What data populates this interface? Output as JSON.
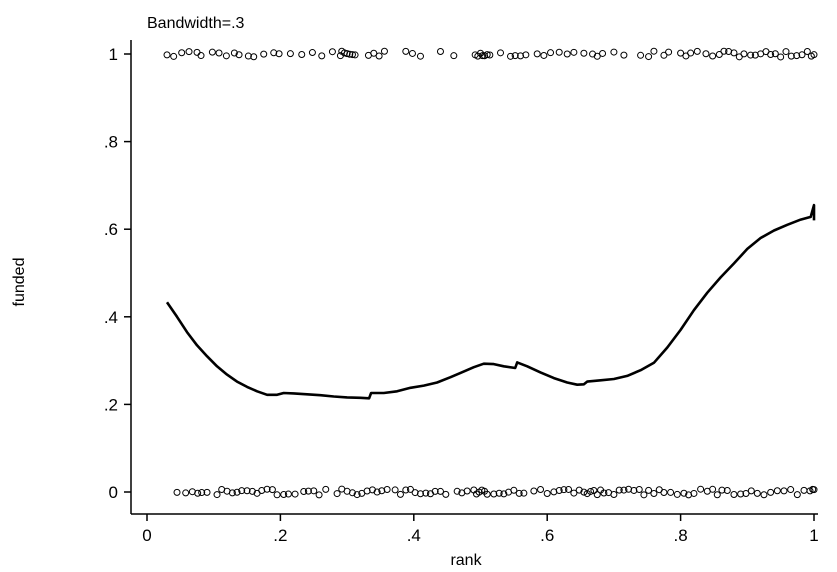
{
  "chart_data": {
    "type": "scatter",
    "subtitle": "Bandwidth=.3",
    "xlabel": "rank",
    "ylabel": "funded",
    "xlim": [
      0,
      1
    ],
    "ylim": [
      0,
      1
    ],
    "grid": false,
    "x_ticks": [
      {
        "value": 0,
        "label": "0"
      },
      {
        "value": 0.2,
        "label": ".2"
      },
      {
        "value": 0.4,
        "label": ".4"
      },
      {
        "value": 0.6,
        "label": ".6"
      },
      {
        "value": 0.8,
        "label": ".8"
      },
      {
        "value": 1,
        "label": "1"
      }
    ],
    "y_ticks": [
      {
        "value": 0,
        "label": "0"
      },
      {
        "value": 0.2,
        "label": ".2"
      },
      {
        "value": 0.4,
        "label": ".4"
      },
      {
        "value": 0.6,
        "label": ".6"
      },
      {
        "value": 0.8,
        "label": ".8"
      },
      {
        "value": 1,
        "label": "1"
      }
    ],
    "series": [
      {
        "type": "scatter",
        "marker": "hollow-circle",
        "points": [
          {
            "x": 0.03,
            "y": 1
          },
          {
            "x": 0.04,
            "y": 1
          },
          {
            "x": 0.052,
            "y": 1
          },
          {
            "x": 0.063,
            "y": 1
          },
          {
            "x": 0.075,
            "y": 1
          },
          {
            "x": 0.081,
            "y": 1
          },
          {
            "x": 0.098,
            "y": 1
          },
          {
            "x": 0.108,
            "y": 1
          },
          {
            "x": 0.119,
            "y": 1
          },
          {
            "x": 0.131,
            "y": 1
          },
          {
            "x": 0.138,
            "y": 1
          },
          {
            "x": 0.152,
            "y": 1
          },
          {
            "x": 0.16,
            "y": 1
          },
          {
            "x": 0.175,
            "y": 1
          },
          {
            "x": 0.19,
            "y": 1
          },
          {
            "x": 0.198,
            "y": 1
          },
          {
            "x": 0.215,
            "y": 1
          },
          {
            "x": 0.232,
            "y": 1
          },
          {
            "x": 0.248,
            "y": 1
          },
          {
            "x": 0.262,
            "y": 1
          },
          {
            "x": 0.278,
            "y": 1
          },
          {
            "x": 0.29,
            "y": 1
          },
          {
            "x": 0.292,
            "y": 1
          },
          {
            "x": 0.296,
            "y": 1
          },
          {
            "x": 0.3,
            "y": 1
          },
          {
            "x": 0.304,
            "y": 1
          },
          {
            "x": 0.308,
            "y": 1
          },
          {
            "x": 0.312,
            "y": 1
          },
          {
            "x": 0.332,
            "y": 1
          },
          {
            "x": 0.34,
            "y": 1
          },
          {
            "x": 0.348,
            "y": 1
          },
          {
            "x": 0.356,
            "y": 1
          },
          {
            "x": 0.388,
            "y": 1
          },
          {
            "x": 0.398,
            "y": 1
          },
          {
            "x": 0.41,
            "y": 1
          },
          {
            "x": 0.44,
            "y": 1
          },
          {
            "x": 0.46,
            "y": 1
          },
          {
            "x": 0.492,
            "y": 1
          },
          {
            "x": 0.496,
            "y": 1
          },
          {
            "x": 0.5,
            "y": 1
          },
          {
            "x": 0.503,
            "y": 1
          },
          {
            "x": 0.506,
            "y": 1
          },
          {
            "x": 0.51,
            "y": 1
          },
          {
            "x": 0.514,
            "y": 1
          },
          {
            "x": 0.53,
            "y": 1
          },
          {
            "x": 0.545,
            "y": 1
          },
          {
            "x": 0.552,
            "y": 1
          },
          {
            "x": 0.56,
            "y": 1
          },
          {
            "x": 0.568,
            "y": 1
          },
          {
            "x": 0.585,
            "y": 1
          },
          {
            "x": 0.595,
            "y": 1
          },
          {
            "x": 0.605,
            "y": 1
          },
          {
            "x": 0.618,
            "y": 1
          },
          {
            "x": 0.63,
            "y": 1
          },
          {
            "x": 0.64,
            "y": 1
          },
          {
            "x": 0.655,
            "y": 1
          },
          {
            "x": 0.668,
            "y": 1
          },
          {
            "x": 0.675,
            "y": 1
          },
          {
            "x": 0.683,
            "y": 1
          },
          {
            "x": 0.7,
            "y": 1
          },
          {
            "x": 0.715,
            "y": 1
          },
          {
            "x": 0.74,
            "y": 1
          },
          {
            "x": 0.752,
            "y": 1
          },
          {
            "x": 0.76,
            "y": 1
          },
          {
            "x": 0.775,
            "y": 1
          },
          {
            "x": 0.782,
            "y": 1
          },
          {
            "x": 0.8,
            "y": 1
          },
          {
            "x": 0.808,
            "y": 1
          },
          {
            "x": 0.815,
            "y": 1
          },
          {
            "x": 0.825,
            "y": 1
          },
          {
            "x": 0.838,
            "y": 1
          },
          {
            "x": 0.848,
            "y": 1
          },
          {
            "x": 0.858,
            "y": 1
          },
          {
            "x": 0.865,
            "y": 1
          },
          {
            "x": 0.872,
            "y": 1
          },
          {
            "x": 0.88,
            "y": 1
          },
          {
            "x": 0.888,
            "y": 1
          },
          {
            "x": 0.895,
            "y": 1
          },
          {
            "x": 0.905,
            "y": 1
          },
          {
            "x": 0.912,
            "y": 1
          },
          {
            "x": 0.92,
            "y": 1
          },
          {
            "x": 0.928,
            "y": 1
          },
          {
            "x": 0.935,
            "y": 1
          },
          {
            "x": 0.942,
            "y": 1
          },
          {
            "x": 0.95,
            "y": 1
          },
          {
            "x": 0.958,
            "y": 1
          },
          {
            "x": 0.966,
            "y": 1
          },
          {
            "x": 0.974,
            "y": 1
          },
          {
            "x": 0.982,
            "y": 1
          },
          {
            "x": 0.99,
            "y": 1
          },
          {
            "x": 0.996,
            "y": 1
          },
          {
            "x": 1.0,
            "y": 1
          },
          {
            "x": 0.045,
            "y": 0
          },
          {
            "x": 0.058,
            "y": 0
          },
          {
            "x": 0.068,
            "y": 0
          },
          {
            "x": 0.076,
            "y": 0
          },
          {
            "x": 0.082,
            "y": 0
          },
          {
            "x": 0.09,
            "y": 0
          },
          {
            "x": 0.105,
            "y": 0
          },
          {
            "x": 0.112,
            "y": 0
          },
          {
            "x": 0.12,
            "y": 0
          },
          {
            "x": 0.128,
            "y": 0
          },
          {
            "x": 0.135,
            "y": 0
          },
          {
            "x": 0.142,
            "y": 0
          },
          {
            "x": 0.15,
            "y": 0
          },
          {
            "x": 0.158,
            "y": 0
          },
          {
            "x": 0.165,
            "y": 0
          },
          {
            "x": 0.172,
            "y": 0
          },
          {
            "x": 0.18,
            "y": 0
          },
          {
            "x": 0.188,
            "y": 0
          },
          {
            "x": 0.195,
            "y": 0
          },
          {
            "x": 0.205,
            "y": 0
          },
          {
            "x": 0.212,
            "y": 0
          },
          {
            "x": 0.222,
            "y": 0
          },
          {
            "x": 0.235,
            "y": 0
          },
          {
            "x": 0.242,
            "y": 0
          },
          {
            "x": 0.25,
            "y": 0
          },
          {
            "x": 0.258,
            "y": 0
          },
          {
            "x": 0.268,
            "y": 0
          },
          {
            "x": 0.285,
            "y": 0
          },
          {
            "x": 0.292,
            "y": 0
          },
          {
            "x": 0.3,
            "y": 0
          },
          {
            "x": 0.308,
            "y": 0
          },
          {
            "x": 0.315,
            "y": 0
          },
          {
            "x": 0.322,
            "y": 0
          },
          {
            "x": 0.33,
            "y": 0
          },
          {
            "x": 0.338,
            "y": 0
          },
          {
            "x": 0.345,
            "y": 0
          },
          {
            "x": 0.352,
            "y": 0
          },
          {
            "x": 0.36,
            "y": 0
          },
          {
            "x": 0.372,
            "y": 0
          },
          {
            "x": 0.38,
            "y": 0
          },
          {
            "x": 0.388,
            "y": 0
          },
          {
            "x": 0.395,
            "y": 0
          },
          {
            "x": 0.402,
            "y": 0
          },
          {
            "x": 0.41,
            "y": 0
          },
          {
            "x": 0.418,
            "y": 0
          },
          {
            "x": 0.425,
            "y": 0
          },
          {
            "x": 0.432,
            "y": 0
          },
          {
            "x": 0.44,
            "y": 0
          },
          {
            "x": 0.448,
            "y": 0
          },
          {
            "x": 0.465,
            "y": 0
          },
          {
            "x": 0.472,
            "y": 0
          },
          {
            "x": 0.48,
            "y": 0
          },
          {
            "x": 0.49,
            "y": 0
          },
          {
            "x": 0.494,
            "y": 0
          },
          {
            "x": 0.498,
            "y": 0
          },
          {
            "x": 0.502,
            "y": 0
          },
          {
            "x": 0.506,
            "y": 0
          },
          {
            "x": 0.51,
            "y": 0
          },
          {
            "x": 0.52,
            "y": 0
          },
          {
            "x": 0.528,
            "y": 0
          },
          {
            "x": 0.535,
            "y": 0
          },
          {
            "x": 0.542,
            "y": 0
          },
          {
            "x": 0.55,
            "y": 0
          },
          {
            "x": 0.558,
            "y": 0
          },
          {
            "x": 0.565,
            "y": 0
          },
          {
            "x": 0.58,
            "y": 0
          },
          {
            "x": 0.59,
            "y": 0
          },
          {
            "x": 0.6,
            "y": 0
          },
          {
            "x": 0.61,
            "y": 0
          },
          {
            "x": 0.618,
            "y": 0
          },
          {
            "x": 0.625,
            "y": 0
          },
          {
            "x": 0.632,
            "y": 0
          },
          {
            "x": 0.64,
            "y": 0
          },
          {
            "x": 0.648,
            "y": 0
          },
          {
            "x": 0.655,
            "y": 0
          },
          {
            "x": 0.66,
            "y": 0
          },
          {
            "x": 0.665,
            "y": 0
          },
          {
            "x": 0.67,
            "y": 0
          },
          {
            "x": 0.675,
            "y": 0
          },
          {
            "x": 0.68,
            "y": 0
          },
          {
            "x": 0.685,
            "y": 0
          },
          {
            "x": 0.692,
            "y": 0
          },
          {
            "x": 0.7,
            "y": 0
          },
          {
            "x": 0.708,
            "y": 0
          },
          {
            "x": 0.715,
            "y": 0
          },
          {
            "x": 0.722,
            "y": 0
          },
          {
            "x": 0.73,
            "y": 0
          },
          {
            "x": 0.738,
            "y": 0
          },
          {
            "x": 0.745,
            "y": 0
          },
          {
            "x": 0.752,
            "y": 0
          },
          {
            "x": 0.76,
            "y": 0
          },
          {
            "x": 0.768,
            "y": 0
          },
          {
            "x": 0.775,
            "y": 0
          },
          {
            "x": 0.785,
            "y": 0
          },
          {
            "x": 0.795,
            "y": 0
          },
          {
            "x": 0.805,
            "y": 0
          },
          {
            "x": 0.812,
            "y": 0
          },
          {
            "x": 0.82,
            "y": 0
          },
          {
            "x": 0.83,
            "y": 0
          },
          {
            "x": 0.84,
            "y": 0
          },
          {
            "x": 0.848,
            "y": 0
          },
          {
            "x": 0.855,
            "y": 0
          },
          {
            "x": 0.862,
            "y": 0
          },
          {
            "x": 0.87,
            "y": 0
          },
          {
            "x": 0.88,
            "y": 0
          },
          {
            "x": 0.89,
            "y": 0
          },
          {
            "x": 0.898,
            "y": 0
          },
          {
            "x": 0.906,
            "y": 0
          },
          {
            "x": 0.915,
            "y": 0
          },
          {
            "x": 0.925,
            "y": 0
          },
          {
            "x": 0.935,
            "y": 0
          },
          {
            "x": 0.945,
            "y": 0
          },
          {
            "x": 0.955,
            "y": 0
          },
          {
            "x": 0.965,
            "y": 0
          },
          {
            "x": 0.975,
            "y": 0
          },
          {
            "x": 0.985,
            "y": 0
          },
          {
            "x": 0.994,
            "y": 0
          },
          {
            "x": 0.998,
            "y": 0
          },
          {
            "x": 1.0,
            "y": 0
          }
        ]
      },
      {
        "type": "line",
        "points": [
          {
            "x": 0.03,
            "y": 0.433
          },
          {
            "x": 0.045,
            "y": 0.4
          },
          {
            "x": 0.06,
            "y": 0.365
          },
          {
            "x": 0.075,
            "y": 0.335
          },
          {
            "x": 0.09,
            "y": 0.31
          },
          {
            "x": 0.105,
            "y": 0.287
          },
          {
            "x": 0.12,
            "y": 0.268
          },
          {
            "x": 0.135,
            "y": 0.252
          },
          {
            "x": 0.15,
            "y": 0.24
          },
          {
            "x": 0.165,
            "y": 0.23
          },
          {
            "x": 0.18,
            "y": 0.222
          },
          {
            "x": 0.195,
            "y": 0.222
          },
          {
            "x": 0.205,
            "y": 0.226
          },
          {
            "x": 0.22,
            "y": 0.225
          },
          {
            "x": 0.24,
            "y": 0.223
          },
          {
            "x": 0.26,
            "y": 0.221
          },
          {
            "x": 0.28,
            "y": 0.218
          },
          {
            "x": 0.3,
            "y": 0.216
          },
          {
            "x": 0.32,
            "y": 0.215
          },
          {
            "x": 0.333,
            "y": 0.214
          },
          {
            "x": 0.336,
            "y": 0.226
          },
          {
            "x": 0.355,
            "y": 0.226
          },
          {
            "x": 0.375,
            "y": 0.23
          },
          {
            "x": 0.395,
            "y": 0.238
          },
          {
            "x": 0.415,
            "y": 0.243
          },
          {
            "x": 0.435,
            "y": 0.25
          },
          {
            "x": 0.455,
            "y": 0.262
          },
          {
            "x": 0.47,
            "y": 0.272
          },
          {
            "x": 0.49,
            "y": 0.285
          },
          {
            "x": 0.505,
            "y": 0.293
          },
          {
            "x": 0.52,
            "y": 0.292
          },
          {
            "x": 0.535,
            "y": 0.287
          },
          {
            "x": 0.552,
            "y": 0.283
          },
          {
            "x": 0.555,
            "y": 0.296
          },
          {
            "x": 0.57,
            "y": 0.287
          },
          {
            "x": 0.59,
            "y": 0.273
          },
          {
            "x": 0.61,
            "y": 0.26
          },
          {
            "x": 0.63,
            "y": 0.25
          },
          {
            "x": 0.645,
            "y": 0.245
          },
          {
            "x": 0.655,
            "y": 0.246
          },
          {
            "x": 0.66,
            "y": 0.252
          },
          {
            "x": 0.68,
            "y": 0.255
          },
          {
            "x": 0.7,
            "y": 0.258
          },
          {
            "x": 0.72,
            "y": 0.265
          },
          {
            "x": 0.74,
            "y": 0.278
          },
          {
            "x": 0.76,
            "y": 0.295
          },
          {
            "x": 0.78,
            "y": 0.33
          },
          {
            "x": 0.8,
            "y": 0.37
          },
          {
            "x": 0.82,
            "y": 0.415
          },
          {
            "x": 0.84,
            "y": 0.455
          },
          {
            "x": 0.86,
            "y": 0.49
          },
          {
            "x": 0.88,
            "y": 0.522
          },
          {
            "x": 0.9,
            "y": 0.555
          },
          {
            "x": 0.92,
            "y": 0.58
          },
          {
            "x": 0.94,
            "y": 0.597
          },
          {
            "x": 0.96,
            "y": 0.61
          },
          {
            "x": 0.98,
            "y": 0.622
          },
          {
            "x": 0.995,
            "y": 0.628
          },
          {
            "x": 1.0,
            "y": 0.655
          },
          {
            "x": 1.0,
            "y": 0.62
          }
        ]
      }
    ]
  }
}
